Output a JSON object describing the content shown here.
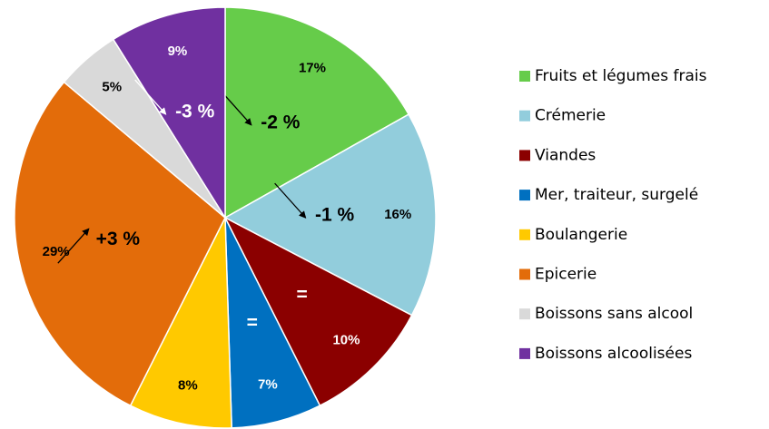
{
  "chart_data": {
    "type": "pie",
    "categories": [
      "Fruits et légumes frais",
      "Crémerie",
      "Viandes",
      "Mer, traiteur, surgelé",
      "Boulangerie",
      "Epicerie",
      "Boissons sans alcool",
      "Boissons alcoolisées"
    ],
    "values": [
      17,
      16,
      10,
      7,
      8,
      29,
      5,
      9
    ],
    "value_labels": [
      "17%",
      "16%",
      "10%",
      "7%",
      "8%",
      "29%",
      "5%",
      "9%"
    ],
    "colors": [
      "#66cc4a",
      "#92cddc",
      "#8b0000",
      "#0070c0",
      "#ffc900",
      "#e36c0a",
      "#d9d9d9",
      "#7030a0"
    ],
    "annotations": [
      "-2 %",
      "-1 %",
      "=",
      "=",
      null,
      "+3 %",
      null,
      "-3 %"
    ],
    "legend": "right"
  }
}
